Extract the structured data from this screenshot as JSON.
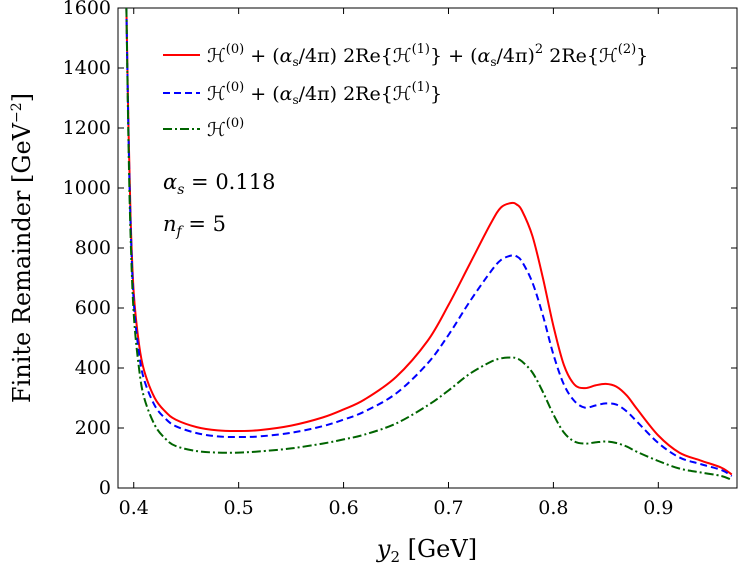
{
  "chart_data": {
    "type": "line",
    "xlabel": "y₂ [GeV]",
    "ylabel": "Finite Remainder [GeV⁻²]",
    "xlim": [
      0.385,
      0.975
    ],
    "ylim": [
      0,
      1600
    ],
    "xticks": [
      0.4,
      0.5,
      0.6,
      0.7,
      0.8,
      0.9
    ],
    "yticks": [
      0,
      200,
      400,
      600,
      800,
      1000,
      1200,
      1400,
      1600
    ],
    "xtick_labels": [
      "0.4",
      "0.5",
      "0.6",
      "0.7",
      "0.8",
      "0.9"
    ],
    "ytick_labels": [
      "0",
      "200",
      "400",
      "600",
      "800",
      "1000",
      "1200",
      "1400",
      "1600"
    ],
    "grid": false,
    "legend_position": "top-left",
    "annotations": [
      "αs = 0.118",
      "nf = 5"
    ],
    "series": [
      {
        "name": "ℋ(0) + (αs/4π) 2Re{ℋ(1)} + (αs/4π)² 2Re{ℋ(2)}",
        "color": "#ff0000",
        "style": "solid",
        "x": [
          0.393,
          0.395,
          0.397,
          0.4,
          0.405,
          0.41,
          0.42,
          0.43,
          0.44,
          0.46,
          0.48,
          0.5,
          0.52,
          0.55,
          0.58,
          0.6,
          0.62,
          0.65,
          0.68,
          0.7,
          0.72,
          0.74,
          0.75,
          0.76,
          0.765,
          0.77,
          0.78,
          0.79,
          0.8,
          0.81,
          0.82,
          0.83,
          0.84,
          0.85,
          0.86,
          0.87,
          0.88,
          0.9,
          0.92,
          0.94,
          0.96,
          0.97
        ],
        "y": [
          1600,
          1200,
          900,
          650,
          480,
          390,
          300,
          255,
          228,
          203,
          192,
          190,
          193,
          208,
          235,
          262,
          295,
          370,
          490,
          610,
          745,
          880,
          935,
          950,
          945,
          925,
          840,
          700,
          540,
          410,
          345,
          333,
          342,
          347,
          338,
          308,
          262,
          175,
          118,
          92,
          68,
          45
        ]
      },
      {
        "name": "ℋ(0) + (αs/4π) 2Re{ℋ(1)}",
        "color": "#0000ff",
        "style": "dashed",
        "x": [
          0.393,
          0.395,
          0.397,
          0.4,
          0.405,
          0.41,
          0.42,
          0.43,
          0.44,
          0.46,
          0.48,
          0.5,
          0.52,
          0.55,
          0.58,
          0.6,
          0.62,
          0.65,
          0.68,
          0.7,
          0.72,
          0.74,
          0.75,
          0.76,
          0.765,
          0.77,
          0.78,
          0.79,
          0.8,
          0.81,
          0.82,
          0.83,
          0.84,
          0.85,
          0.86,
          0.87,
          0.88,
          0.9,
          0.92,
          0.94,
          0.96,
          0.97
        ],
        "y": [
          1600,
          1180,
          880,
          620,
          450,
          360,
          275,
          232,
          206,
          183,
          172,
          170,
          172,
          184,
          206,
          228,
          255,
          315,
          415,
          510,
          620,
          720,
          760,
          775,
          772,
          755,
          685,
          575,
          445,
          345,
          290,
          268,
          275,
          282,
          278,
          255,
          220,
          150,
          102,
          80,
          60,
          40
        ]
      },
      {
        "name": "ℋ(0)",
        "color": "#006400",
        "style": "dashdot",
        "x": [
          0.393,
          0.395,
          0.397,
          0.4,
          0.405,
          0.41,
          0.42,
          0.43,
          0.44,
          0.46,
          0.48,
          0.5,
          0.52,
          0.55,
          0.58,
          0.6,
          0.62,
          0.65,
          0.68,
          0.7,
          0.72,
          0.74,
          0.75,
          0.76,
          0.765,
          0.77,
          0.78,
          0.79,
          0.8,
          0.81,
          0.82,
          0.83,
          0.84,
          0.85,
          0.86,
          0.87,
          0.88,
          0.9,
          0.92,
          0.94,
          0.96,
          0.97
        ],
        "y": [
          1600,
          1150,
          840,
          580,
          400,
          300,
          210,
          165,
          140,
          123,
          118,
          118,
          122,
          132,
          148,
          162,
          178,
          215,
          275,
          325,
          380,
          420,
          432,
          435,
          432,
          422,
          385,
          320,
          245,
          185,
          155,
          148,
          152,
          155,
          150,
          138,
          120,
          90,
          65,
          52,
          40,
          27
        ]
      }
    ]
  }
}
